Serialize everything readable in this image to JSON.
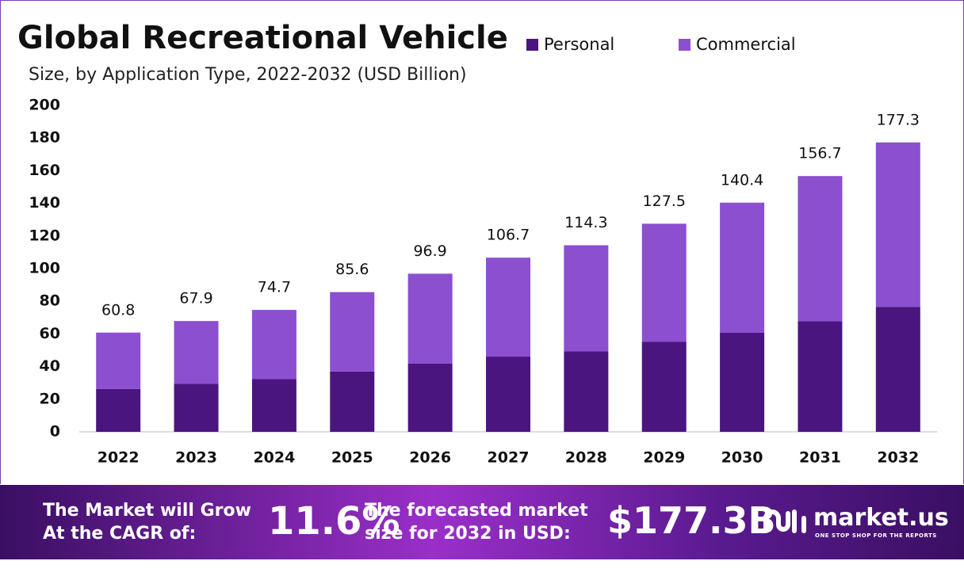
{
  "chart_data": {
    "type": "stacked_bar",
    "title": "Global Recreational Vehicle",
    "subtitle": "Size, by Application Type, 2022-2032 (USD Billion)",
    "categories": [
      "2022",
      "2023",
      "2024",
      "2025",
      "2026",
      "2027",
      "2028",
      "2029",
      "2030",
      "2031",
      "2032"
    ],
    "series": [
      {
        "name": "Personal",
        "color": "#4b1580",
        "values": [
          26.3,
          29.4,
          32.3,
          37.0,
          41.9,
          46.1,
          49.4,
          55.1,
          60.7,
          67.7,
          76.6
        ]
      },
      {
        "name": "Commercial",
        "color": "#8b4fd0",
        "values": [
          34.5,
          38.5,
          42.4,
          48.6,
          55.0,
          60.6,
          64.9,
          72.4,
          79.7,
          89.0,
          100.7
        ]
      }
    ],
    "totals": [
      60.8,
      67.9,
      74.7,
      85.6,
      96.9,
      106.7,
      114.3,
      127.5,
      140.4,
      156.7,
      177.3
    ],
    "ylim": [
      0,
      200
    ],
    "yticks": [
      0,
      20,
      40,
      60,
      80,
      100,
      120,
      140,
      160,
      180,
      200
    ],
    "grid": false
  },
  "banner": {
    "cagr_caption": [
      "The Market will Grow",
      "At the CAGR of:"
    ],
    "cagr_value": "11.6%",
    "size_caption": [
      "The forecasted market",
      "size for 2032 in USD:"
    ],
    "size_value": "$177.3B",
    "logo": "market.us",
    "tagline": "ONE STOP SHOP FOR THE REPORTS"
  }
}
